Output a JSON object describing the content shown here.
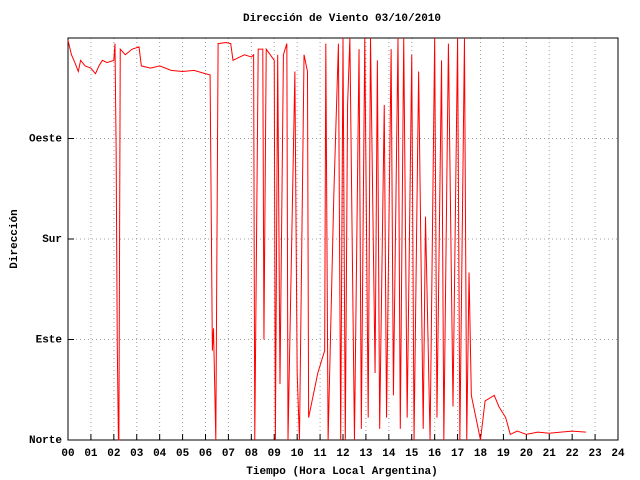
{
  "chart_data": {
    "type": "line",
    "title": "Dirección de Viento 03/10/2010",
    "x_label": "Tiempo (Hora Local Argentina)",
    "y_label": "Dirección",
    "xlim": [
      0,
      24
    ],
    "ylim": [
      0,
      360
    ],
    "xticks": [
      {
        "value": 0,
        "label": "00"
      },
      {
        "value": 1,
        "label": "01"
      },
      {
        "value": 2,
        "label": "02"
      },
      {
        "value": 3,
        "label": "03"
      },
      {
        "value": 4,
        "label": "04"
      },
      {
        "value": 5,
        "label": "05"
      },
      {
        "value": 6,
        "label": "06"
      },
      {
        "value": 7,
        "label": "07"
      },
      {
        "value": 8,
        "label": "08"
      },
      {
        "value": 9,
        "label": "09"
      },
      10,
      11,
      12,
      13,
      14,
      15,
      16,
      17,
      18,
      19,
      20,
      21,
      22,
      23,
      24
    ],
    "yticks": [
      {
        "value": 0,
        "label": "Norte"
      },
      {
        "value": 90,
        "label": "Este"
      },
      {
        "value": 180,
        "label": "Sur"
      },
      {
        "value": 270,
        "label": "Oeste"
      }
    ],
    "grid": true,
    "series": [
      {
        "color": "#ff0000",
        "x": [
          0.0,
          0.15,
          0.3,
          0.45,
          0.55,
          0.75,
          1.0,
          1.2,
          1.35,
          1.5,
          1.7,
          2.0,
          2.05,
          2.1,
          2.15,
          2.2,
          2.22,
          2.28,
          2.5,
          2.8,
          3.1,
          3.2,
          3.6,
          4.0,
          4.5,
          5.0,
          5.5,
          6.0,
          6.2,
          6.3,
          6.35,
          6.45,
          6.55,
          6.9,
          7.1,
          7.2,
          7.4,
          7.7,
          8.0,
          8.1,
          8.15,
          8.3,
          8.5,
          8.55,
          8.65,
          9.0,
          9.05,
          9.15,
          9.25,
          9.4,
          9.55,
          9.6,
          9.9,
          10.0,
          10.1,
          10.3,
          10.45,
          10.5,
          10.9,
          11.2,
          11.25,
          11.35,
          11.6,
          11.8,
          11.9,
          12.0,
          12.1,
          12.2,
          12.3,
          12.5,
          12.7,
          12.8,
          12.95,
          13.1,
          13.2,
          13.4,
          13.5,
          13.6,
          13.8,
          13.9,
          14.1,
          14.2,
          14.4,
          14.5,
          14.65,
          14.8,
          15.0,
          15.1,
          15.3,
          15.5,
          15.6,
          15.8,
          16.0,
          16.1,
          16.3,
          16.4,
          16.6,
          16.8,
          17.0,
          17.1,
          17.3,
          17.4,
          17.5,
          17.6,
          18.0,
          18.2,
          18.6,
          18.8,
          19.1,
          19.3,
          19.6,
          20.0,
          20.5,
          21.0,
          21.5,
          22.0,
          22.6
        ],
        "values": [
          358,
          345,
          338,
          330,
          340,
          335,
          333,
          328,
          335,
          340,
          338,
          340,
          355,
          260,
          85,
          0,
          0,
          350,
          345,
          350,
          352,
          335,
          333,
          335,
          331,
          330,
          331,
          328,
          327,
          80,
          100,
          0,
          355,
          356,
          355,
          340,
          342,
          345,
          343,
          345,
          0,
          350,
          350,
          90,
          350,
          340,
          0,
          345,
          50,
          345,
          355,
          0,
          330,
          60,
          0,
          345,
          330,
          20,
          60,
          80,
          355,
          0,
          220,
          355,
          0,
          360,
          0,
          300,
          360,
          0,
          350,
          10,
          360,
          20,
          360,
          60,
          340,
          10,
          300,
          20,
          350,
          40,
          360,
          10,
          360,
          20,
          345,
          0,
          330,
          10,
          200,
          0,
          360,
          20,
          340,
          0,
          355,
          30,
          360,
          0,
          360,
          0,
          150,
          40,
          0,
          35,
          40,
          30,
          20,
          5,
          8,
          5,
          7,
          6,
          7,
          8,
          7
        ]
      }
    ]
  }
}
